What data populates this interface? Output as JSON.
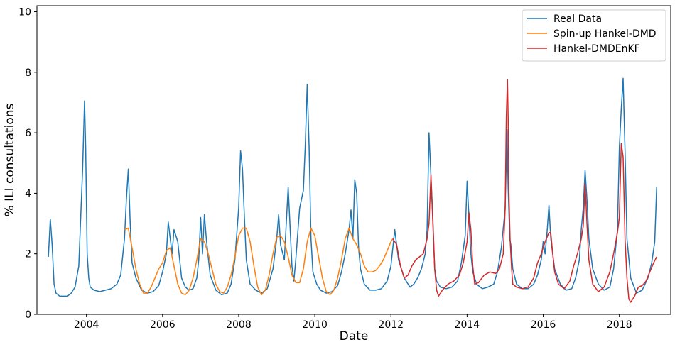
{
  "chart_data": {
    "type": "line",
    "xlabel": "Date",
    "ylabel": "% ILI consultations",
    "xlim": [
      2002.7,
      2019.35
    ],
    "ylim": [
      0,
      10.2
    ],
    "x_ticks": [
      2004,
      2006,
      2008,
      2010,
      2012,
      2014,
      2016,
      2018
    ],
    "x_tick_labels": [
      "2004",
      "2006",
      "2008",
      "2010",
      "2012",
      "2014",
      "2016",
      "2018"
    ],
    "y_ticks": [
      0,
      2,
      4,
      6,
      8,
      10
    ],
    "y_tick_labels": [
      "0",
      "2",
      "4",
      "6",
      "8",
      "10"
    ],
    "grid": false,
    "legend_position": "top-right",
    "series": [
      {
        "name": "Real Data",
        "color": "#1f77b4",
        "x": [
          2003.0,
          2003.05,
          2003.1,
          2003.15,
          2003.2,
          2003.3,
          2003.4,
          2003.5,
          2003.6,
          2003.7,
          2003.8,
          2003.85,
          2003.9,
          2003.95,
          2003.98,
          2004.02,
          2004.06,
          2004.1,
          2004.2,
          2004.35,
          2004.5,
          2004.65,
          2004.8,
          2004.9,
          2005.0,
          2005.05,
          2005.1,
          2005.15,
          2005.2,
          2005.3,
          2005.45,
          2005.6,
          2005.75,
          2005.9,
          2006.0,
          2006.1,
          2006.15,
          2006.25,
          2006.3,
          2006.4,
          2006.5,
          2006.6,
          2006.7,
          2006.8,
          2006.9,
          2006.95,
          2007.0,
          2007.05,
          2007.1,
          2007.15,
          2007.25,
          2007.4,
          2007.55,
          2007.7,
          2007.8,
          2007.9,
          2008.0,
          2008.05,
          2008.1,
          2008.15,
          2008.2,
          2008.3,
          2008.45,
          2008.6,
          2008.75,
          2008.9,
          2009.0,
          2009.05,
          2009.1,
          2009.2,
          2009.3,
          2009.4,
          2009.45,
          2009.5,
          2009.6,
          2009.7,
          2009.75,
          2009.8,
          2009.85,
          2009.9,
          2009.95,
          2010.05,
          2010.15,
          2010.3,
          2010.45,
          2010.6,
          2010.7,
          2010.8,
          2010.9,
          2010.95,
          2011.0,
          2011.05,
          2011.1,
          2011.15,
          2011.2,
          2011.3,
          2011.45,
          2011.6,
          2011.75,
          2011.9,
          2012.0,
          2012.05,
          2012.1,
          2012.2,
          2012.35,
          2012.5,
          2012.6,
          2012.7,
          2012.8,
          2012.9,
          2012.95,
          2013.0,
          2013.05,
          2013.1,
          2013.15,
          2013.2,
          2013.3,
          2013.45,
          2013.6,
          2013.75,
          2013.85,
          2013.95,
          2014.0,
          2014.05,
          2014.1,
          2014.15,
          2014.25,
          2014.4,
          2014.55,
          2014.7,
          2014.8,
          2014.9,
          2015.0,
          2015.05,
          2015.08,
          2015.12,
          2015.15,
          2015.2,
          2015.3,
          2015.45,
          2015.6,
          2015.75,
          2015.85,
          2015.95,
          2016.0,
          2016.05,
          2016.1,
          2016.15,
          2016.2,
          2016.3,
          2016.45,
          2016.6,
          2016.75,
          2016.85,
          2016.95,
          2017.0,
          2017.05,
          2017.1,
          2017.15,
          2017.2,
          2017.3,
          2017.45,
          2017.6,
          2017.75,
          2017.85,
          2017.95,
          2018.0,
          2018.05,
          2018.1,
          2018.15,
          2018.2,
          2018.3,
          2018.45,
          2018.6,
          2018.75,
          2018.85,
          2018.93,
          2018.98
        ],
        "y": [
          1.9,
          3.15,
          2.3,
          1.0,
          0.7,
          0.6,
          0.6,
          0.6,
          0.7,
          0.9,
          1.6,
          3.2,
          4.8,
          7.05,
          5.5,
          2.0,
          1.2,
          0.9,
          0.8,
          0.75,
          0.8,
          0.85,
          1.0,
          1.3,
          2.5,
          3.8,
          4.8,
          3.0,
          1.7,
          1.2,
          0.8,
          0.7,
          0.75,
          0.95,
          1.4,
          2.0,
          3.05,
          2.0,
          2.8,
          2.4,
          1.2,
          0.9,
          0.8,
          0.85,
          1.2,
          1.8,
          3.2,
          2.0,
          3.3,
          2.5,
          1.3,
          0.8,
          0.65,
          0.7,
          1.0,
          1.8,
          3.5,
          5.4,
          4.8,
          3.2,
          1.8,
          1.0,
          0.8,
          0.7,
          0.85,
          1.5,
          2.5,
          3.3,
          2.3,
          1.8,
          4.2,
          1.6,
          1.1,
          1.8,
          3.5,
          4.1,
          5.6,
          7.6,
          5.5,
          2.5,
          1.4,
          1.0,
          0.8,
          0.7,
          0.75,
          0.95,
          1.4,
          2.0,
          2.8,
          3.45,
          2.5,
          4.45,
          4.0,
          2.2,
          1.5,
          1.0,
          0.8,
          0.8,
          0.85,
          1.1,
          1.6,
          2.2,
          2.8,
          1.8,
          1.2,
          0.9,
          1.0,
          1.2,
          1.5,
          2.0,
          2.8,
          6.0,
          4.6,
          3.2,
          1.5,
          1.1,
          0.9,
          0.85,
          0.9,
          1.1,
          1.7,
          2.6,
          4.4,
          3.2,
          2.0,
          1.4,
          1.0,
          0.85,
          0.9,
          1.0,
          1.4,
          2.2,
          3.5,
          6.1,
          4.2,
          2.5,
          2.3,
          1.5,
          1.0,
          0.85,
          0.85,
          1.0,
          1.3,
          1.8,
          2.4,
          2.0,
          2.7,
          3.6,
          2.5,
          1.5,
          1.0,
          0.8,
          0.85,
          1.2,
          1.8,
          2.8,
          3.5,
          4.75,
          3.8,
          2.5,
          1.5,
          1.0,
          0.8,
          0.9,
          1.5,
          2.8,
          5.5,
          6.8,
          7.8,
          5.4,
          2.5,
          1.2,
          0.7,
          0.8,
          1.2,
          1.7,
          2.4,
          4.2
        ]
      },
      {
        "name": "Spin-up Hankel-DMD",
        "color": "#ff7f0e",
        "x": [
          2005.0,
          2005.1,
          2005.2,
          2005.3,
          2005.4,
          2005.5,
          2005.6,
          2005.7,
          2005.8,
          2005.9,
          2006.0,
          2006.1,
          2006.2,
          2006.3,
          2006.4,
          2006.5,
          2006.6,
          2006.7,
          2006.8,
          2006.9,
          2007.0,
          2007.1,
          2007.2,
          2007.3,
          2007.4,
          2007.5,
          2007.6,
          2007.7,
          2007.8,
          2007.9,
          2008.0,
          2008.1,
          2008.2,
          2008.3,
          2008.4,
          2008.5,
          2008.6,
          2008.7,
          2008.8,
          2008.9,
          2009.0,
          2009.1,
          2009.2,
          2009.3,
          2009.4,
          2009.5,
          2009.6,
          2009.7,
          2009.8,
          2009.9,
          2010.0,
          2010.1,
          2010.2,
          2010.3,
          2010.4,
          2010.5,
          2010.6,
          2010.7,
          2010.8,
          2010.9,
          2011.0,
          2011.1,
          2011.2,
          2011.3,
          2011.4,
          2011.5,
          2011.6,
          2011.7,
          2011.8,
          2011.9,
          2012.0,
          2012.05
        ],
        "y": [
          2.8,
          2.85,
          2.2,
          1.5,
          1.0,
          0.7,
          0.7,
          0.9,
          1.2,
          1.5,
          1.7,
          2.1,
          2.2,
          1.6,
          1.0,
          0.7,
          0.65,
          0.8,
          1.2,
          1.8,
          2.5,
          2.4,
          2.0,
          1.5,
          1.0,
          0.75,
          0.7,
          0.9,
          1.3,
          1.9,
          2.6,
          2.85,
          2.85,
          2.4,
          1.6,
          0.9,
          0.65,
          0.8,
          1.3,
          2.0,
          2.55,
          2.6,
          2.4,
          1.9,
          1.3,
          1.05,
          1.05,
          1.5,
          2.4,
          2.85,
          2.6,
          1.9,
          1.2,
          0.75,
          0.65,
          0.8,
          1.2,
          1.8,
          2.5,
          2.85,
          2.5,
          2.3,
          2.0,
          1.6,
          1.4,
          1.4,
          1.45,
          1.6,
          1.8,
          2.1,
          2.4,
          2.5
        ]
      },
      {
        "name": "Hankel-DMDEnKF",
        "color": "#d62728",
        "x": [
          2012.05,
          2012.15,
          2012.25,
          2012.35,
          2012.45,
          2012.55,
          2012.65,
          2012.75,
          2012.85,
          2012.95,
          2013.0,
          2013.05,
          2013.1,
          2013.15,
          2013.2,
          2013.25,
          2013.35,
          2013.5,
          2013.65,
          2013.8,
          2013.9,
          2014.0,
          2014.05,
          2014.1,
          2014.15,
          2014.2,
          2014.3,
          2014.45,
          2014.6,
          2014.75,
          2014.85,
          2014.95,
          2015.0,
          2015.03,
          2015.06,
          2015.08,
          2015.1,
          2015.13,
          2015.17,
          2015.2,
          2015.3,
          2015.45,
          2015.6,
          2015.75,
          2015.85,
          2015.95,
          2016.05,
          2016.15,
          2016.2,
          2016.25,
          2016.3,
          2016.4,
          2016.55,
          2016.7,
          2016.8,
          2016.9,
          2017.0,
          2017.05,
          2017.1,
          2017.15,
          2017.2,
          2017.3,
          2017.45,
          2017.6,
          2017.75,
          2017.85,
          2017.95,
          2018.0,
          2018.05,
          2018.1,
          2018.15,
          2018.2,
          2018.25,
          2018.3,
          2018.4,
          2018.5,
          2018.6,
          2018.7,
          2018.8,
          2018.9,
          2018.98
        ],
        "y": [
          2.5,
          2.3,
          1.6,
          1.2,
          1.3,
          1.6,
          1.8,
          1.9,
          2.0,
          2.5,
          3.0,
          4.6,
          3.0,
          1.5,
          0.8,
          0.6,
          0.8,
          1.0,
          1.1,
          1.3,
          1.7,
          2.4,
          3.35,
          2.8,
          1.6,
          1.0,
          1.05,
          1.3,
          1.4,
          1.35,
          1.5,
          2.0,
          3.5,
          6.5,
          7.75,
          6.5,
          4.0,
          2.5,
          1.5,
          1.0,
          0.9,
          0.85,
          0.9,
          1.2,
          1.7,
          2.0,
          2.4,
          2.7,
          2.7,
          2.0,
          1.4,
          1.0,
          0.85,
          1.1,
          1.6,
          2.0,
          2.5,
          2.9,
          4.3,
          3.0,
          1.8,
          1.0,
          0.75,
          0.9,
          1.4,
          2.0,
          2.7,
          3.2,
          5.65,
          5.2,
          2.5,
          1.2,
          0.5,
          0.4,
          0.6,
          0.9,
          0.95,
          1.1,
          1.4,
          1.7,
          1.9
        ]
      }
    ]
  }
}
